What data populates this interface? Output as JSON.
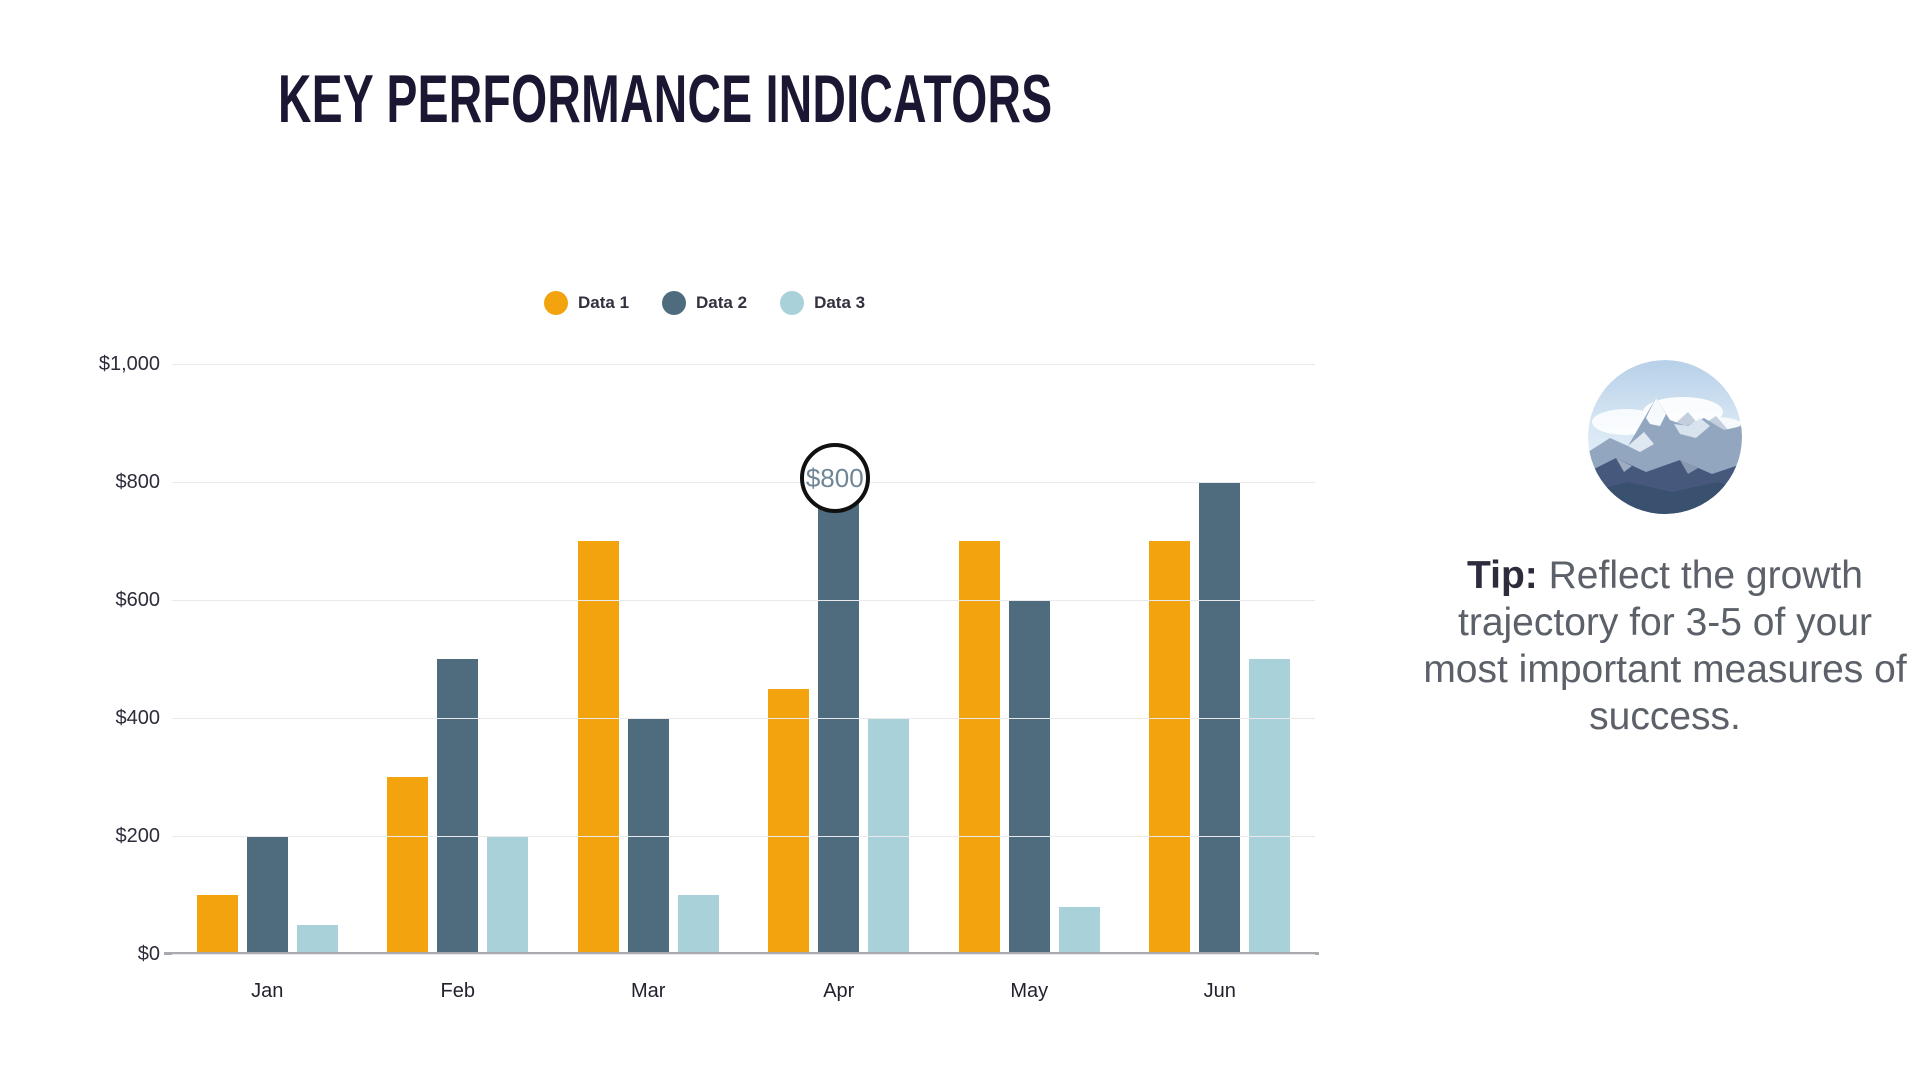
{
  "page": {
    "background": "#ffffff",
    "title": "KEY PERFORMANCE INDICATORS",
    "title_color": "#1B1733"
  },
  "chart_data": {
    "type": "bar",
    "title": "KEY PERFORMANCE INDICATORS",
    "categories": [
      "Jan",
      "Feb",
      "Mar",
      "Apr",
      "May",
      "Jun"
    ],
    "series": [
      {
        "name": "Data 1",
        "color": "#F2A30D",
        "values": [
          100,
          300,
          700,
          450,
          700,
          700
        ]
      },
      {
        "name": "Data 2",
        "color": "#4E6C7D",
        "values": [
          200,
          500,
          400,
          800,
          600,
          800
        ]
      },
      {
        "name": "Data 3",
        "color": "#A9D1D9",
        "values": [
          50,
          200,
          100,
          400,
          80,
          500
        ]
      }
    ],
    "y_axis": {
      "min": 0,
      "max": 1000,
      "tick_step": 200,
      "tick_labels": [
        "$0",
        "$200",
        "$400",
        "$600",
        "$800",
        "$1,000"
      ]
    },
    "xlabel": "",
    "ylabel": "",
    "grid": true,
    "legend_position": "top",
    "annotation": {
      "text": "$800",
      "series": "Data 2",
      "category": "Apr",
      "value": 800
    }
  },
  "tip": {
    "label": "Tip:",
    "text": "Reflect the growth trajectory for 3-5 of your most important measures of success."
  },
  "image": {
    "name": "mountain-photo"
  },
  "colors": {
    "gridline": "#E9E9EC",
    "axis_line": "#A9A9AF",
    "axis_text": "#2C2C3A",
    "callout_text": "#6E8695"
  }
}
